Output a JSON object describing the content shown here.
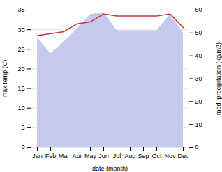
{
  "chart_data": {
    "type": "line",
    "categories": [
      "Jan",
      "Feb",
      "Mar",
      "Apr",
      "May",
      "Jun",
      "Jul",
      "Aug",
      "Sep",
      "Oct",
      "Nov",
      "Dec"
    ],
    "series": [
      {
        "type": "area",
        "axis": "y2",
        "color": "#c5caee",
        "values": [
          48.0,
          41.0,
          46.0,
          52.0,
          58.0,
          59.0,
          51.0,
          51.0,
          51.0,
          51.0,
          58.0,
          50.0
        ]
      },
      {
        "type": "line",
        "color": "#cc3333",
        "values": [
          28.5,
          29.0,
          29.5,
          31.5,
          32.0,
          34.0,
          33.5,
          33.5,
          33.5,
          33.5,
          34.0,
          30.5
        ]
      }
    ],
    "xlabel": "date (month)",
    "ylabel": "max temp (C)",
    "y2label": "med. precipitation (kg/m2)",
    "ylim": [
      0,
      35
    ],
    "yticks": [
      0,
      5,
      10,
      15,
      20,
      25,
      30,
      35
    ],
    "y2lim": [
      0,
      60
    ],
    "y2ticks": [
      0,
      10,
      20,
      30,
      40,
      50,
      60
    ],
    "grid": true
  }
}
